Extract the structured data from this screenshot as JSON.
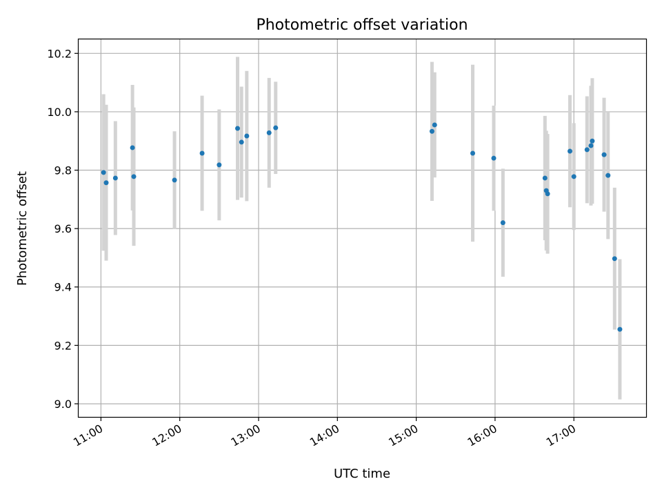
{
  "chart_data": {
    "type": "scatter",
    "title": "Photometric offset variation",
    "xlabel": "UTC time",
    "ylabel": "Photometric offset",
    "x_ticks": [
      "11:00",
      "12:00",
      "13:00",
      "14:00",
      "15:00",
      "16:00",
      "17:00"
    ],
    "xlim": [
      "10:43",
      "17:55"
    ],
    "y_ticks": [
      "9.0",
      "9.2",
      "9.4",
      "9.6",
      "9.8",
      "10.0",
      "10.2"
    ],
    "ylim": [
      8.955,
      10.248
    ],
    "grid": true,
    "colors": {
      "point": "#1f77b4",
      "errorbar": "#d3d3d3"
    },
    "points": [
      {
        "x": "11:02",
        "y": 9.792,
        "err": 0.268
      },
      {
        "x": "11:04",
        "y": 9.757,
        "err": 0.267
      },
      {
        "x": "11:11",
        "y": 9.773,
        "err": 0.195
      },
      {
        "x": "11:24",
        "y": 9.877,
        "err": 0.215
      },
      {
        "x": "11:25",
        "y": 9.778,
        "err": 0.237
      },
      {
        "x": "11:56",
        "y": 9.766,
        "err": 0.167
      },
      {
        "x": "12:17",
        "y": 9.858,
        "err": 0.197
      },
      {
        "x": "12:30",
        "y": 9.818,
        "err": 0.19
      },
      {
        "x": "12:44",
        "y": 9.943,
        "err": 0.245
      },
      {
        "x": "12:47",
        "y": 9.896,
        "err": 0.19
      },
      {
        "x": "12:51",
        "y": 9.917,
        "err": 0.223
      },
      {
        "x": "13:08",
        "y": 9.928,
        "err": 0.188
      },
      {
        "x": "13:13",
        "y": 9.945,
        "err": 0.158
      },
      {
        "x": "15:12",
        "y": 9.933,
        "err": 0.238
      },
      {
        "x": "15:14",
        "y": 9.955,
        "err": 0.18
      },
      {
        "x": "15:43",
        "y": 9.858,
        "err": 0.303
      },
      {
        "x": "15:59",
        "y": 9.841,
        "err": 0.18
      },
      {
        "x": "16:06",
        "y": 9.62,
        "err": 0.185
      },
      {
        "x": "16:38",
        "y": 9.773,
        "err": 0.213
      },
      {
        "x": "16:39",
        "y": 9.73,
        "err": 0.205
      },
      {
        "x": "16:40",
        "y": 9.719,
        "err": 0.205
      },
      {
        "x": "16:57",
        "y": 9.865,
        "err": 0.192
      },
      {
        "x": "17:00",
        "y": 9.778,
        "err": 0.183
      },
      {
        "x": "17:10",
        "y": 9.87,
        "err": 0.183
      },
      {
        "x": "17:13",
        "y": 9.884,
        "err": 0.205
      },
      {
        "x": "17:14",
        "y": 9.9,
        "err": 0.215
      },
      {
        "x": "17:23",
        "y": 9.853,
        "err": 0.195
      },
      {
        "x": "17:26",
        "y": 9.782,
        "err": 0.218
      },
      {
        "x": "17:31",
        "y": 9.497,
        "err": 0.243
      },
      {
        "x": "17:35",
        "y": 9.255,
        "err": 0.24
      }
    ]
  }
}
